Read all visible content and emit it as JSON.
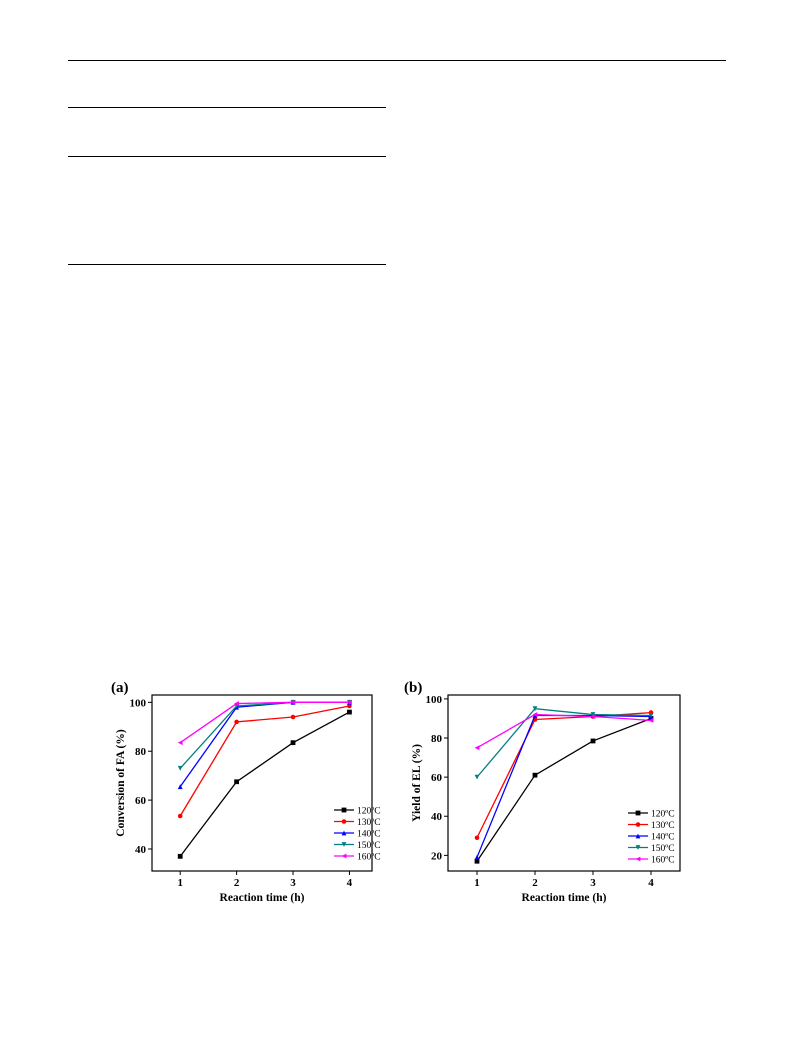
{
  "chart_data": [
    {
      "type": "line",
      "panel_label": "(a)",
      "title": "",
      "xlabel": "Reaction time (h)",
      "ylabel": "Conversion of FA (%)",
      "x": [
        1,
        2,
        3,
        4
      ],
      "xlim": [
        0.5,
        4.4
      ],
      "ylim": [
        31,
        103
      ],
      "yticks": [
        40,
        60,
        80,
        100
      ],
      "xticks": [
        1,
        2,
        3,
        4
      ],
      "legend_position": "bottom-right",
      "series": [
        {
          "name": "120ºC",
          "color": "#000000",
          "marker": "square",
          "values": [
            37,
            67.5,
            83.5,
            96
          ]
        },
        {
          "name": "130ºC",
          "color": "#ff0000",
          "marker": "circle",
          "values": [
            53.5,
            92,
            94,
            98.5
          ]
        },
        {
          "name": "140ºC",
          "color": "#0000ff",
          "marker": "triangle-up",
          "values": [
            65.5,
            98,
            100,
            100
          ]
        },
        {
          "name": "150ºC",
          "color": "#008080",
          "marker": "triangle-down",
          "values": [
            73,
            98.5,
            100,
            100
          ]
        },
        {
          "name": "160ºC",
          "color": "#ff00ff",
          "marker": "triangle-left",
          "values": [
            83.5,
            99.5,
            100,
            100
          ]
        }
      ]
    },
    {
      "type": "line",
      "panel_label": "(b)",
      "title": "",
      "xlabel": "Reaction time (h)",
      "ylabel": "Yield of EL (%)",
      "x": [
        1,
        2,
        3,
        4
      ],
      "xlim": [
        0.5,
        4.5
      ],
      "ylim": [
        12,
        102
      ],
      "yticks": [
        20,
        40,
        60,
        80,
        100
      ],
      "xticks": [
        1,
        2,
        3,
        4
      ],
      "legend_position": "bottom-right",
      "series": [
        {
          "name": "120ºC",
          "color": "#000000",
          "marker": "square",
          "values": [
            17,
            61,
            78.5,
            90
          ]
        },
        {
          "name": "130ºC",
          "color": "#ff0000",
          "marker": "circle",
          "values": [
            29,
            89.5,
            91,
            93
          ]
        },
        {
          "name": "140ºC",
          "color": "#0000ff",
          "marker": "triangle-up",
          "values": [
            19,
            91.5,
            91.5,
            91
          ]
        },
        {
          "name": "150ºC",
          "color": "#008080",
          "marker": "triangle-down",
          "values": [
            60,
            95,
            92,
            91.5
          ]
        },
        {
          "name": "160ºC",
          "color": "#ff00ff",
          "marker": "triangle-left",
          "values": [
            75,
            92,
            91,
            89
          ]
        }
      ]
    }
  ]
}
